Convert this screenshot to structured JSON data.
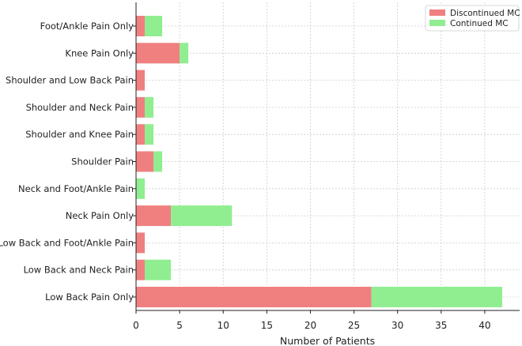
{
  "chart_data": {
    "type": "bar",
    "orientation": "horizontal",
    "stacked": true,
    "categories": [
      "Low Back Pain Only",
      "Low Back and Neck Pain",
      "Low Back and Foot/Ankle Pain",
      "Neck Pain Only",
      "Neck and Foot/Ankle Pain",
      "Shoulder Pain",
      "Shoulder and Knee Pain",
      "Shoulder and Neck Pain",
      "Shoulder and Low Back Pain",
      "Knee Pain Only",
      "Foot/Ankle Pain Only"
    ],
    "series": [
      {
        "name": "Discontinued MC",
        "color": "#f08080",
        "values": [
          27,
          1,
          1,
          4,
          0,
          2,
          1,
          1,
          1,
          5,
          1
        ]
      },
      {
        "name": "Continued MC",
        "color": "#90ee90",
        "values": [
          15,
          3,
          0,
          7,
          1,
          1,
          1,
          1,
          0,
          1,
          2
        ]
      }
    ],
    "xlabel": "Number of Patients",
    "ylabel": "",
    "xlim": [
      0,
      44
    ],
    "xticks": [
      0,
      5,
      10,
      15,
      20,
      25,
      30,
      35,
      40
    ],
    "grid": true,
    "legend_position": "top-right"
  }
}
